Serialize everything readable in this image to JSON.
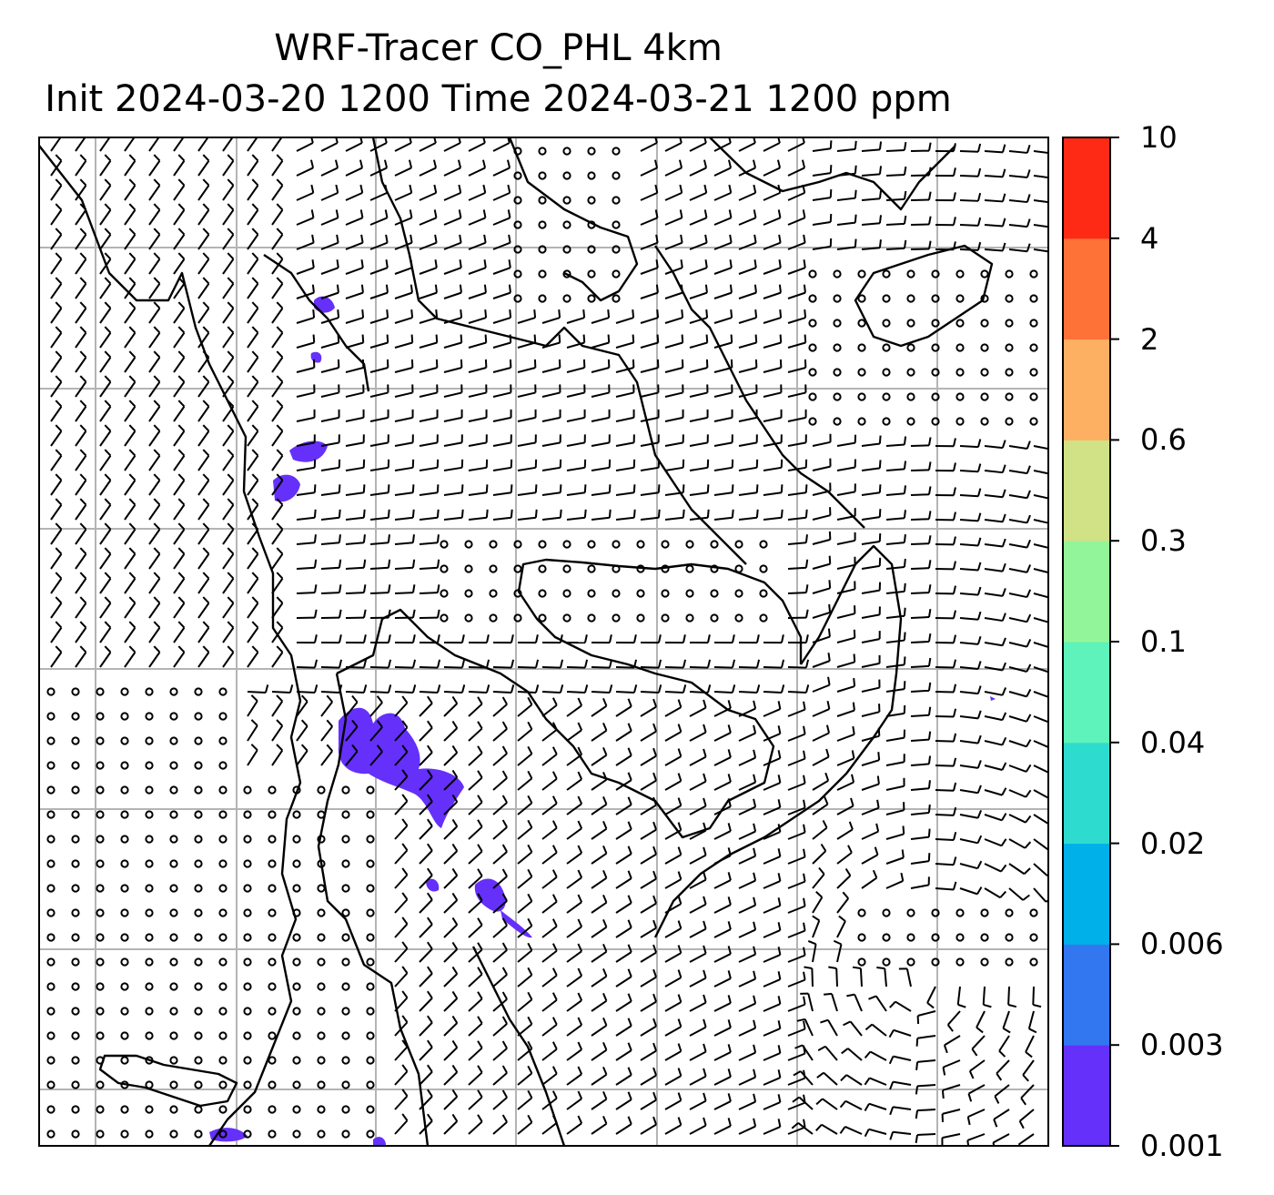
{
  "title": {
    "line1": "WRF-Tracer CO_PHL 4km",
    "line2": "Init 2024-03-20 1200 Time 2024-03-21 1200 ppm"
  },
  "colorbar": {
    "levels": [
      "0.001",
      "0.003",
      "0.006",
      "0.02",
      "0.04",
      "0.1",
      "0.3",
      "0.6",
      "2",
      "4",
      "10"
    ],
    "colors": [
      "#6530fa",
      "#3276f0",
      "#00b0e8",
      "#2edccf",
      "#5ef3ba",
      "#93f59a",
      "#d1e185",
      "#fdb062",
      "#fe7237",
      "#ff2a15"
    ]
  },
  "map": {
    "background": "#ffffff",
    "grid_color": "#b4b4b4",
    "coastline_color": "#000000",
    "tracer_color": "#6530fa",
    "wind_barb_color": "#000000"
  }
}
